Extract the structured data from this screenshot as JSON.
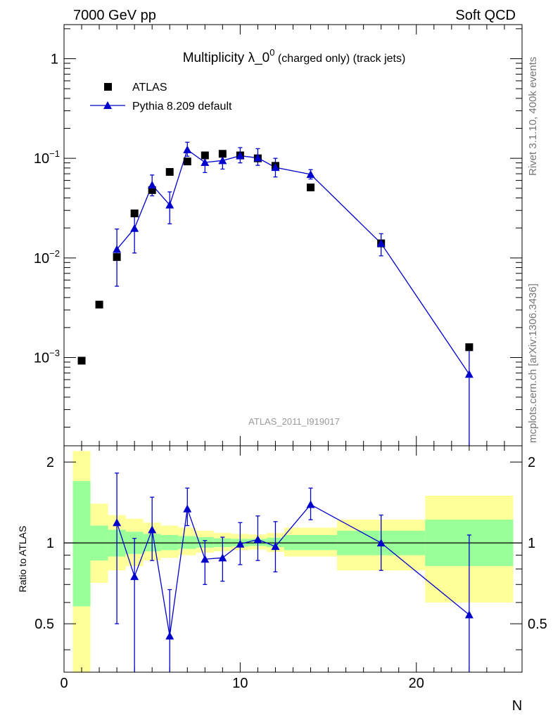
{
  "header": {
    "left": "7000 GeV pp",
    "right": "Soft QCD"
  },
  "side_labels": {
    "rivet": "Rivet 3.1.10,  400k events",
    "mcplots": "mcplots.cern.ch [arXiv:1306.3436]"
  },
  "colors": {
    "mc": "#0000cc",
    "green_band": "#99ff99",
    "yellow_band": "#ffff99",
    "data": "#000000",
    "analysis_label": "#999999"
  },
  "chart_data": [
    {
      "type": "scatter",
      "title": {
        "main": "Multiplicity λ_0",
        "sup": "0",
        "rest": " (charged only) (track jets)"
      },
      "analysis_label": "ATLAS_2011_I919017",
      "legend_position": "top-left",
      "legend": [
        "ATLAS",
        "Pythia 8.209 default"
      ],
      "xlim": [
        0,
        26
      ],
      "ylog": true,
      "ylim": [
        0.00013,
        2.2
      ],
      "ytick_values": [
        0.001,
        0.01,
        0.1,
        1
      ],
      "ytick_labels": [
        {
          "base": "10",
          "exp": "−3"
        },
        {
          "base": "10",
          "exp": "−2"
        },
        {
          "base": "10",
          "exp": "−1"
        },
        {
          "base": "1",
          "exp": ""
        }
      ],
      "series": [
        {
          "name": "ATLAS",
          "x": [
            1,
            2,
            3,
            4,
            5,
            6,
            7,
            8,
            9,
            10,
            11,
            12,
            14,
            18,
            23
          ],
          "y": [
            0.00093,
            0.0034,
            0.0102,
            0.028,
            0.048,
            0.073,
            0.093,
            0.107,
            0.111,
            0.107,
            0.1,
            0.084,
            0.051,
            0.014,
            0.00127
          ]
        },
        {
          "name": "Pythia 8.209 default",
          "x": [
            3,
            4,
            5,
            6,
            7,
            8,
            9,
            10,
            11,
            12,
            14,
            18,
            23
          ],
          "y": [
            0.0122,
            0.0198,
            0.054,
            0.034,
            0.122,
            0.091,
            0.095,
            0.106,
            0.101,
            0.081,
            0.069,
            0.014,
            0.00068
          ],
          "y_low": [
            0.0052,
            0.0112,
            0.042,
            0.022,
            0.105,
            0.072,
            0.078,
            0.09,
            0.085,
            0.065,
            0.062,
            0.0105,
            0.00013
          ],
          "y_high": [
            0.0195,
            0.0295,
            0.068,
            0.046,
            0.145,
            0.11,
            0.115,
            0.128,
            0.125,
            0.1,
            0.077,
            0.0175,
            0.00128
          ]
        }
      ]
    },
    {
      "type": "scatter",
      "ylabel": "Ratio to ATLAS",
      "xlabel": "N",
      "xlim": [
        0,
        26
      ],
      "ylim": [
        0.33,
        2.3
      ],
      "xticks": [
        0,
        10,
        20
      ],
      "yticks": [
        0.5,
        1,
        2
      ],
      "reference_line": 1,
      "bands": {
        "x_low": [
          0.5,
          1.5,
          2.5,
          3.5,
          4.5,
          5.5,
          6.5,
          7.5,
          8.5,
          9.5,
          10.5,
          11.5,
          12.5,
          15.5,
          20.5
        ],
        "x_high": [
          1.5,
          2.5,
          3.5,
          4.5,
          5.5,
          6.5,
          7.5,
          8.5,
          9.5,
          10.5,
          11.5,
          12.5,
          15.5,
          20.5,
          25.5
        ],
        "green_low": [
          0.58,
          0.86,
          0.89,
          0.91,
          0.93,
          0.94,
          0.95,
          0.96,
          0.965,
          0.97,
          0.975,
          0.965,
          0.94,
          0.9,
          0.82
        ],
        "green_high": [
          1.7,
          1.16,
          1.12,
          1.1,
          1.08,
          1.07,
          1.06,
          1.05,
          1.04,
          1.035,
          1.035,
          1.045,
          1.07,
          1.11,
          1.22
        ],
        "yellow_low": [
          0.33,
          0.71,
          0.79,
          0.82,
          0.86,
          0.88,
          0.9,
          0.92,
          0.93,
          0.94,
          0.945,
          0.925,
          0.89,
          0.79,
          0.6
        ],
        "yellow_high": [
          2.2,
          1.4,
          1.27,
          1.23,
          1.19,
          1.16,
          1.14,
          1.11,
          1.09,
          1.08,
          1.075,
          1.09,
          1.14,
          1.22,
          1.5
        ]
      },
      "series": [
        {
          "name": "Pythia 8.209 default",
          "x": [
            3,
            4,
            5,
            6,
            7,
            8,
            9,
            10,
            11,
            12,
            14,
            18,
            23
          ],
          "y": [
            1.19,
            0.75,
            1.12,
            0.45,
            1.34,
            0.87,
            0.88,
            0.99,
            1.03,
            0.97,
            1.39,
            1.0,
            0.54
          ],
          "y_low": [
            0.5,
            0.33,
            0.86,
            0.33,
            1.16,
            0.7,
            0.72,
            0.83,
            0.86,
            0.78,
            1.22,
            0.79,
            0.33
          ],
          "y_high": [
            1.82,
            1.04,
            1.48,
            0.67,
            1.6,
            1.02,
            1.05,
            1.19,
            1.26,
            1.2,
            1.6,
            1.27,
            1.07
          ]
        }
      ]
    }
  ]
}
